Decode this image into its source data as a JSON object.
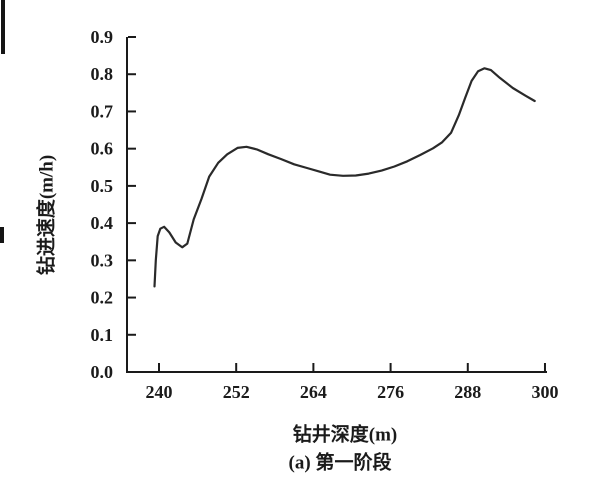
{
  "figure": {
    "ylabel": "钻进速度(m/h)",
    "xlabel": "钻井深度(m)",
    "caption": "(a) 第一阶段"
  },
  "colors": {
    "background": "#ffffff",
    "axis": "#1a1a1a",
    "line": "#2a2a2a",
    "text": "#1b1b1b"
  },
  "chart_data": {
    "type": "line",
    "title": "",
    "xlabel": "钻井深度(m)",
    "ylabel": "钻进速度(m/h)",
    "caption": "(a) 第一阶段",
    "xlim": [
      235,
      300.3
    ],
    "ylim": [
      0,
      0.9
    ],
    "xticks": [
      "240",
      "252",
      "264",
      "276",
      "288",
      "300"
    ],
    "yticks": [
      "0.0",
      "0.1",
      "0.2",
      "0.3",
      "0.4",
      "0.5",
      "0.6",
      "0.7",
      "0.8",
      "0.9"
    ],
    "grid": false,
    "legend": null,
    "series": [
      {
        "points": [
          [
            239.3,
            0.23
          ],
          [
            239.5,
            0.3
          ],
          [
            239.8,
            0.365
          ],
          [
            240.2,
            0.385
          ],
          [
            240.8,
            0.39
          ],
          [
            241.6,
            0.375
          ],
          [
            242.6,
            0.348
          ],
          [
            243.6,
            0.335
          ],
          [
            244.4,
            0.345
          ],
          [
            245.4,
            0.41
          ],
          [
            246.6,
            0.465
          ],
          [
            247.8,
            0.525
          ],
          [
            249.2,
            0.562
          ],
          [
            250.6,
            0.585
          ],
          [
            252.2,
            0.602
          ],
          [
            253.6,
            0.605
          ],
          [
            255.2,
            0.598
          ],
          [
            257.0,
            0.585
          ],
          [
            259.0,
            0.572
          ],
          [
            261.0,
            0.558
          ],
          [
            263.0,
            0.548
          ],
          [
            265.0,
            0.538
          ],
          [
            266.6,
            0.53
          ],
          [
            268.6,
            0.527
          ],
          [
            270.6,
            0.528
          ],
          [
            272.6,
            0.533
          ],
          [
            274.6,
            0.541
          ],
          [
            276.6,
            0.552
          ],
          [
            278.6,
            0.566
          ],
          [
            280.6,
            0.583
          ],
          [
            282.6,
            0.601
          ],
          [
            284.0,
            0.617
          ],
          [
            285.4,
            0.643
          ],
          [
            286.6,
            0.69
          ],
          [
            287.6,
            0.737
          ],
          [
            288.6,
            0.782
          ],
          [
            289.6,
            0.808
          ],
          [
            290.6,
            0.816
          ],
          [
            291.6,
            0.811
          ],
          [
            293.0,
            0.79
          ],
          [
            295.0,
            0.763
          ],
          [
            297.0,
            0.742
          ],
          [
            298.4,
            0.728
          ]
        ]
      }
    ]
  }
}
